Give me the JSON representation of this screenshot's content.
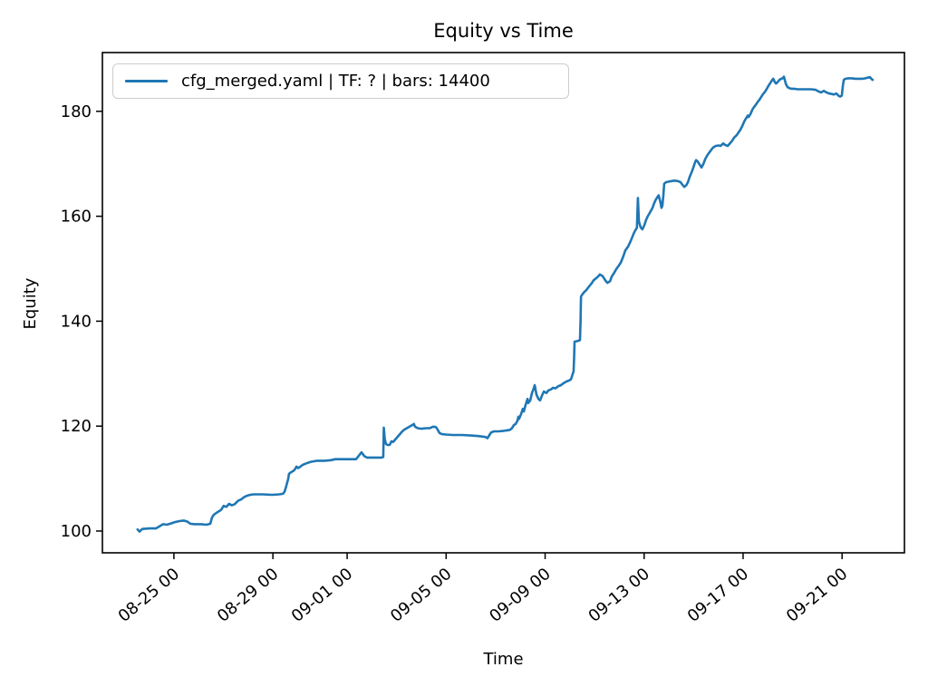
{
  "chart_data": {
    "type": "line",
    "title": "Equity vs Time",
    "xlabel": "Time",
    "ylabel": "Equity",
    "grid": false,
    "legend": {
      "position": "upper left",
      "entries": [
        {
          "label": "cfg_merged.yaml | TF: ? | bars: 14400",
          "color": "#1f77b4"
        }
      ]
    },
    "x_axis": {
      "unit": "days since 08-23 00:00",
      "range": [
        -0.89,
        31.52
      ],
      "ticks": [
        {
          "day": 2,
          "label": "08-25 00"
        },
        {
          "day": 6,
          "label": "08-29 00"
        },
        {
          "day": 9,
          "label": "09-01 00"
        },
        {
          "day": 13,
          "label": "09-05 00"
        },
        {
          "day": 17,
          "label": "09-09 00"
        },
        {
          "day": 21,
          "label": "09-13 00"
        },
        {
          "day": 25,
          "label": "09-17 00"
        },
        {
          "day": 29,
          "label": "09-21 00"
        }
      ]
    },
    "y_axis": {
      "range": [
        95.85,
        191.2
      ],
      "ticks": [
        100,
        120,
        140,
        160,
        180
      ]
    },
    "series": [
      {
        "name": "cfg_merged.yaml | TF: ? | bars: 14400",
        "color": "#1f77b4",
        "line_width": 2.6,
        "points": [
          [
            0.53,
            100.3
          ],
          [
            0.61,
            99.9
          ],
          [
            0.72,
            100.4
          ],
          [
            1.01,
            100.5
          ],
          [
            1.27,
            100.5
          ],
          [
            1.45,
            101.0
          ],
          [
            1.56,
            101.3
          ],
          [
            1.71,
            101.2
          ],
          [
            1.85,
            101.4
          ],
          [
            2.04,
            101.7
          ],
          [
            2.22,
            101.9
          ],
          [
            2.4,
            102.0
          ],
          [
            2.55,
            101.8
          ],
          [
            2.66,
            101.4
          ],
          [
            2.84,
            101.3
          ],
          [
            3.1,
            101.3
          ],
          [
            3.32,
            101.2
          ],
          [
            3.47,
            101.4
          ],
          [
            3.54,
            102.6
          ],
          [
            3.61,
            103.1
          ],
          [
            3.76,
            103.6
          ],
          [
            3.9,
            104.0
          ],
          [
            4.01,
            104.8
          ],
          [
            4.12,
            104.6
          ],
          [
            4.23,
            105.2
          ],
          [
            4.34,
            104.9
          ],
          [
            4.45,
            105.1
          ],
          [
            4.6,
            105.8
          ],
          [
            4.71,
            106.0
          ],
          [
            4.82,
            106.4
          ],
          [
            4.93,
            106.7
          ],
          [
            5.08,
            106.9
          ],
          [
            5.22,
            107.0
          ],
          [
            5.59,
            107.0
          ],
          [
            5.96,
            106.9
          ],
          [
            6.25,
            107.0
          ],
          [
            6.4,
            107.1
          ],
          [
            6.47,
            107.5
          ],
          [
            6.54,
            108.6
          ],
          [
            6.62,
            110.0
          ],
          [
            6.65,
            110.9
          ],
          [
            6.73,
            111.2
          ],
          [
            6.84,
            111.5
          ],
          [
            6.91,
            111.9
          ],
          [
            6.95,
            112.3
          ],
          [
            7.02,
            112.0
          ],
          [
            7.09,
            112.2
          ],
          [
            7.2,
            112.6
          ],
          [
            7.35,
            112.9
          ],
          [
            7.53,
            113.2
          ],
          [
            7.79,
            113.4
          ],
          [
            8.08,
            113.4
          ],
          [
            8.34,
            113.5
          ],
          [
            8.52,
            113.7
          ],
          [
            8.89,
            113.7
          ],
          [
            9.25,
            113.7
          ],
          [
            9.36,
            113.7
          ],
          [
            9.51,
            114.6
          ],
          [
            9.58,
            115.0
          ],
          [
            9.69,
            114.3
          ],
          [
            9.8,
            114.0
          ],
          [
            9.99,
            114.0
          ],
          [
            10.17,
            114.0
          ],
          [
            10.39,
            114.0
          ],
          [
            10.46,
            114.1
          ],
          [
            10.48,
            119.7
          ],
          [
            10.52,
            117.5
          ],
          [
            10.57,
            116.6
          ],
          [
            10.64,
            116.4
          ],
          [
            10.72,
            116.4
          ],
          [
            10.79,
            117.1
          ],
          [
            10.86,
            117.0
          ],
          [
            10.97,
            117.6
          ],
          [
            11.08,
            118.2
          ],
          [
            11.19,
            118.8
          ],
          [
            11.3,
            119.3
          ],
          [
            11.41,
            119.6
          ],
          [
            11.52,
            119.9
          ],
          [
            11.63,
            120.2
          ],
          [
            11.7,
            120.4
          ],
          [
            11.74,
            119.9
          ],
          [
            11.85,
            119.6
          ],
          [
            12.0,
            119.5
          ],
          [
            12.18,
            119.6
          ],
          [
            12.33,
            119.6
          ],
          [
            12.48,
            119.9
          ],
          [
            12.59,
            119.8
          ],
          [
            12.66,
            119.3
          ],
          [
            12.73,
            118.7
          ],
          [
            12.81,
            118.5
          ],
          [
            12.99,
            118.4
          ],
          [
            13.28,
            118.3
          ],
          [
            13.65,
            118.3
          ],
          [
            14.01,
            118.2
          ],
          [
            14.31,
            118.1
          ],
          [
            14.49,
            118.0
          ],
          [
            14.6,
            117.9
          ],
          [
            14.67,
            117.7
          ],
          [
            14.75,
            118.3
          ],
          [
            14.82,
            118.8
          ],
          [
            14.93,
            119.0
          ],
          [
            15.11,
            119.0
          ],
          [
            15.33,
            119.1
          ],
          [
            15.48,
            119.2
          ],
          [
            15.59,
            119.3
          ],
          [
            15.66,
            119.6
          ],
          [
            15.74,
            120.2
          ],
          [
            15.81,
            120.4
          ],
          [
            15.88,
            121.0
          ],
          [
            15.92,
            121.8
          ],
          [
            15.95,
            121.4
          ],
          [
            16.03,
            122.3
          ],
          [
            16.1,
            123.3
          ],
          [
            16.14,
            122.8
          ],
          [
            16.21,
            124.0
          ],
          [
            16.29,
            125.2
          ],
          [
            16.32,
            124.4
          ],
          [
            16.4,
            124.9
          ],
          [
            16.47,
            126.3
          ],
          [
            16.54,
            127.2
          ],
          [
            16.58,
            127.8
          ],
          [
            16.65,
            126.0
          ],
          [
            16.73,
            125.2
          ],
          [
            16.8,
            124.9
          ],
          [
            16.87,
            125.8
          ],
          [
            16.95,
            126.6
          ],
          [
            17.05,
            126.3
          ],
          [
            17.13,
            126.8
          ],
          [
            17.24,
            127.0
          ],
          [
            17.31,
            127.3
          ],
          [
            17.42,
            127.2
          ],
          [
            17.53,
            127.6
          ],
          [
            17.64,
            127.8
          ],
          [
            17.75,
            128.2
          ],
          [
            17.86,
            128.5
          ],
          [
            17.97,
            128.7
          ],
          [
            18.04,
            128.9
          ],
          [
            18.08,
            129.4
          ],
          [
            18.11,
            129.9
          ],
          [
            18.15,
            130.4
          ],
          [
            18.17,
            133.0
          ],
          [
            18.19,
            136.1
          ],
          [
            18.3,
            136.2
          ],
          [
            18.37,
            136.3
          ],
          [
            18.41,
            136.4
          ],
          [
            18.43,
            140.0
          ],
          [
            18.45,
            144.7
          ],
          [
            18.52,
            145.2
          ],
          [
            18.59,
            145.6
          ],
          [
            18.66,
            145.9
          ],
          [
            18.74,
            146.4
          ],
          [
            18.81,
            146.8
          ],
          [
            18.88,
            147.2
          ],
          [
            18.96,
            147.8
          ],
          [
            19.07,
            148.2
          ],
          [
            19.14,
            148.5
          ],
          [
            19.21,
            148.9
          ],
          [
            19.32,
            148.6
          ],
          [
            19.43,
            147.8
          ],
          [
            19.51,
            147.3
          ],
          [
            19.62,
            147.6
          ],
          [
            19.69,
            148.5
          ],
          [
            19.8,
            149.3
          ],
          [
            19.87,
            149.9
          ],
          [
            19.98,
            150.6
          ],
          [
            20.06,
            151.2
          ],
          [
            20.17,
            152.5
          ],
          [
            20.24,
            153.5
          ],
          [
            20.35,
            154.2
          ],
          [
            20.46,
            155.3
          ],
          [
            20.57,
            156.6
          ],
          [
            20.64,
            157.3
          ],
          [
            20.71,
            157.8
          ],
          [
            20.75,
            163.5
          ],
          [
            20.79,
            159.0
          ],
          [
            20.86,
            157.9
          ],
          [
            20.93,
            157.5
          ],
          [
            21.01,
            158.3
          ],
          [
            21.08,
            159.3
          ],
          [
            21.15,
            160.0
          ],
          [
            21.26,
            160.9
          ],
          [
            21.34,
            161.6
          ],
          [
            21.41,
            162.5
          ],
          [
            21.48,
            163.2
          ],
          [
            21.56,
            163.8
          ],
          [
            21.59,
            164.0
          ],
          [
            21.67,
            162.5
          ],
          [
            21.7,
            161.6
          ],
          [
            21.74,
            162.0
          ],
          [
            21.78,
            164.0
          ],
          [
            21.81,
            166.2
          ],
          [
            21.89,
            166.5
          ],
          [
            22.0,
            166.6
          ],
          [
            22.11,
            166.7
          ],
          [
            22.22,
            166.8
          ],
          [
            22.36,
            166.7
          ],
          [
            22.47,
            166.5
          ],
          [
            22.55,
            166.0
          ],
          [
            22.62,
            165.6
          ],
          [
            22.7,
            165.9
          ],
          [
            22.77,
            166.5
          ],
          [
            22.84,
            167.5
          ],
          [
            22.92,
            168.4
          ],
          [
            22.99,
            169.3
          ],
          [
            23.06,
            170.3
          ],
          [
            23.1,
            170.7
          ],
          [
            23.17,
            170.4
          ],
          [
            23.25,
            169.8
          ],
          [
            23.32,
            169.3
          ],
          [
            23.39,
            169.9
          ],
          [
            23.47,
            170.9
          ],
          [
            23.54,
            171.5
          ],
          [
            23.61,
            172.0
          ],
          [
            23.72,
            172.7
          ],
          [
            23.79,
            173.1
          ],
          [
            23.9,
            173.4
          ],
          [
            24.01,
            173.5
          ],
          [
            24.09,
            173.4
          ],
          [
            24.2,
            173.9
          ],
          [
            24.27,
            173.6
          ],
          [
            24.38,
            173.4
          ],
          [
            24.49,
            174.0
          ],
          [
            24.56,
            174.4
          ],
          [
            24.64,
            175.0
          ],
          [
            24.75,
            175.5
          ],
          [
            24.82,
            176.0
          ],
          [
            24.89,
            176.5
          ],
          [
            24.97,
            177.2
          ],
          [
            25.04,
            178.0
          ],
          [
            25.11,
            178.6
          ],
          [
            25.19,
            179.2
          ],
          [
            25.22,
            178.9
          ],
          [
            25.3,
            179.5
          ],
          [
            25.37,
            180.3
          ],
          [
            25.44,
            180.8
          ],
          [
            25.52,
            181.3
          ],
          [
            25.59,
            181.8
          ],
          [
            25.66,
            182.2
          ],
          [
            25.74,
            182.8
          ],
          [
            25.81,
            183.3
          ],
          [
            25.88,
            183.7
          ],
          [
            25.96,
            184.3
          ],
          [
            26.03,
            184.9
          ],
          [
            26.1,
            185.4
          ],
          [
            26.18,
            186.0
          ],
          [
            26.22,
            186.2
          ],
          [
            26.28,
            185.6
          ],
          [
            26.33,
            185.3
          ],
          [
            26.4,
            185.6
          ],
          [
            26.47,
            186.0
          ],
          [
            26.54,
            186.2
          ],
          [
            26.6,
            186.3
          ],
          [
            26.65,
            186.6
          ],
          [
            26.69,
            185.9
          ],
          [
            26.73,
            185.2
          ],
          [
            26.8,
            184.6
          ],
          [
            26.88,
            184.4
          ],
          [
            26.95,
            184.3
          ],
          [
            27.06,
            184.3
          ],
          [
            27.2,
            184.2
          ],
          [
            27.38,
            184.2
          ],
          [
            27.57,
            184.2
          ],
          [
            27.75,
            184.2
          ],
          [
            27.93,
            184.1
          ],
          [
            28.04,
            183.8
          ],
          [
            28.15,
            183.6
          ],
          [
            28.26,
            183.9
          ],
          [
            28.37,
            183.6
          ],
          [
            28.48,
            183.4
          ],
          [
            28.59,
            183.3
          ],
          [
            28.66,
            183.2
          ],
          [
            28.77,
            183.4
          ],
          [
            28.85,
            183.0
          ],
          [
            28.92,
            182.8
          ],
          [
            28.99,
            183.0
          ],
          [
            29.03,
            184.8
          ],
          [
            29.07,
            186.0
          ],
          [
            29.14,
            186.2
          ],
          [
            29.25,
            186.3
          ],
          [
            29.4,
            186.3
          ],
          [
            29.55,
            186.2
          ],
          [
            29.69,
            186.2
          ],
          [
            29.84,
            186.2
          ],
          [
            29.95,
            186.3
          ],
          [
            30.02,
            186.4
          ],
          [
            30.13,
            186.5
          ],
          [
            30.2,
            186.1
          ],
          [
            30.24,
            186.0
          ]
        ]
      }
    ],
    "style": {
      "line_color": "#1f77b4",
      "spine_color": "#000000",
      "background": "#ffffff",
      "legend_border": "#cccccc"
    }
  }
}
